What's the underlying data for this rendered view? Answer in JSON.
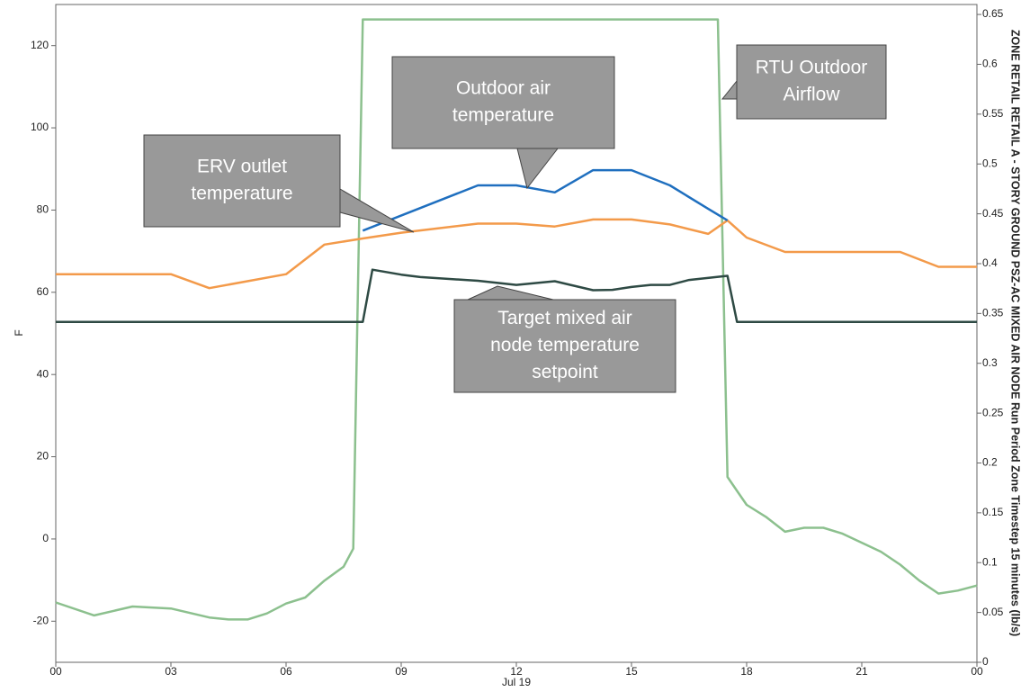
{
  "chart_data": {
    "type": "line",
    "ylabel": "F",
    "y2label": "ZONE RETAIL RETAIL A - STORY GROUND PSZ-AC MIXED AIR NODE Run Period Zone Timestep 15 minutes (lb/s)",
    "date_label": "Jul 19",
    "xlim": [
      0,
      24
    ],
    "xticks": [
      {
        "value": 0,
        "label": "00"
      },
      {
        "value": 3,
        "label": "03"
      },
      {
        "value": 6,
        "label": "06"
      },
      {
        "value": 9,
        "label": "09"
      },
      12,
      15,
      18,
      21,
      {
        "value": 24,
        "label": "00"
      }
    ],
    "ylim": [
      -30,
      130
    ],
    "yticks": [
      -20,
      0,
      20,
      40,
      60,
      80,
      100,
      120
    ],
    "y2lim": [
      0,
      0.66
    ],
    "y2ticks": [
      0,
      0.05,
      0.1,
      0.15,
      0.2,
      0.25,
      0.3,
      0.35,
      0.4,
      0.45,
      0.5,
      0.55,
      0.6,
      0.65
    ],
    "series": [
      {
        "color": "#1f6fbf",
        "x": [
          8,
          11,
          12,
          13,
          14,
          15,
          16,
          17,
          17.5
        ],
        "values": [
          75,
          86,
          86,
          84.3,
          89.7,
          89.7,
          86,
          80.3,
          77.5
        ]
      },
      {
        "color": "#f39a4a",
        "x": [
          0,
          3,
          4,
          6,
          7,
          8,
          9,
          11,
          12,
          13,
          14,
          15,
          16,
          17,
          17.5,
          18,
          19,
          22,
          23,
          24
        ],
        "values": [
          64.4,
          64.4,
          61,
          64.4,
          71.6,
          73.1,
          74.5,
          76.7,
          76.7,
          76,
          77.7,
          77.7,
          76.5,
          74.2,
          77.5,
          73.3,
          69.8,
          69.8,
          66.2,
          66.2
        ]
      },
      {
        "color": "#2e4a44",
        "x": [
          0,
          8,
          8.25,
          9,
          9.5,
          11,
          12,
          13,
          14,
          14.5,
          15,
          15.5,
          16,
          16.5,
          17.5,
          17.75,
          24
        ],
        "values": [
          52.8,
          52.8,
          65.5,
          64.3,
          63.7,
          62.8,
          61.8,
          62.7,
          60.5,
          60.6,
          61.3,
          61.8,
          61.8,
          63,
          64,
          52.8,
          52.8
        ]
      },
      {
        "color": "#8cc08e",
        "axis": "y2",
        "x": [
          0,
          1,
          2,
          3,
          4,
          4.5,
          5,
          5.5,
          6,
          6.5,
          7,
          7.5,
          7.75,
          8,
          17.25,
          17.5,
          17.75,
          18,
          18.5,
          19,
          19.5,
          20,
          20.5,
          21,
          21.5,
          22,
          22.5,
          23,
          23.5,
          24
        ],
        "values": [
          0.06,
          0.047,
          0.056,
          0.054,
          0.045,
          0.043,
          0.043,
          0.049,
          0.059,
          0.065,
          0.082,
          0.096,
          0.114,
          0.645,
          0.645,
          0.186,
          0.172,
          0.158,
          0.146,
          0.131,
          0.135,
          0.135,
          0.129,
          0.12,
          0.111,
          0.098,
          0.082,
          0.069,
          0.072,
          0.077
        ]
      }
    ],
    "annotations": [
      {
        "text": [
          "ERV outlet",
          "temperature"
        ]
      },
      {
        "text": [
          "Outdoor air",
          "temperature"
        ]
      },
      {
        "text": [
          "RTU Outdoor",
          "Airflow"
        ]
      },
      {
        "text": [
          "Target mixed air",
          "node temperature",
          "setpoint"
        ]
      }
    ]
  }
}
